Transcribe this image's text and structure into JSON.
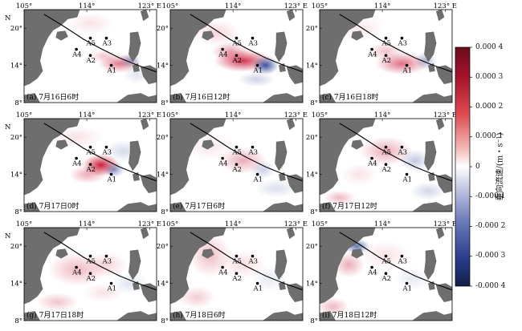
{
  "lon_labels": [
    "105°",
    "114°",
    "123° E"
  ],
  "lat_labels": [
    "20°",
    "14°",
    "8°"
  ],
  "north_label": "N",
  "stations": [
    {
      "name": "A5",
      "lon": 114.5,
      "lat": 18.4
    },
    {
      "name": "A3",
      "lon": 116.8,
      "lat": 18.4
    },
    {
      "name": "A4",
      "lon": 112.5,
      "lat": 16.6
    },
    {
      "name": "A2",
      "lon": 114.5,
      "lat": 15.6
    },
    {
      "name": "A1",
      "lon": 117.5,
      "lat": 14.0
    }
  ],
  "panels": [
    {
      "id": "a",
      "title": "(a) 7月16日6时",
      "show_north": true,
      "show_top_labels": true
    },
    {
      "id": "b",
      "title": "(b) 7月16日12时",
      "show_north": false,
      "show_top_labels": true
    },
    {
      "id": "c",
      "title": "(c) 7月16日18时",
      "show_north": false,
      "show_top_labels": true
    },
    {
      "id": "d",
      "title": "(d) 7月17日0时",
      "show_north": true,
      "show_top_labels": true
    },
    {
      "id": "e",
      "title": "(e) 7月17日6时",
      "show_north": false,
      "show_top_labels": true
    },
    {
      "id": "f",
      "title": "(f) 7月17日12时",
      "show_north": false,
      "show_top_labels": true
    },
    {
      "id": "g",
      "title": "(g) 7月17日18时",
      "show_north": true,
      "show_top_labels": true
    },
    {
      "id": "h",
      "title": "(h) 7月18日6时",
      "show_north": false,
      "show_top_labels": true
    },
    {
      "id": "i",
      "title": "(i) 7月18日12时",
      "show_north": false,
      "show_top_labels": true
    }
  ],
  "colorbar": {
    "label": "垂向流速/(m・s⁻¹)",
    "ticks": [
      "0.000 4",
      "0.000 3",
      "0.000 2",
      "0.000 1",
      "0",
      "-0.000 1",
      "-0.000 2",
      "-0.000 3",
      "-0.000 4"
    ],
    "min": -0.0004,
    "max": 0.0004
  },
  "colors": {
    "land": "#6e6e6e",
    "positive": "#c8102e",
    "negative": "#2f4b9a",
    "track": "#000000"
  }
}
